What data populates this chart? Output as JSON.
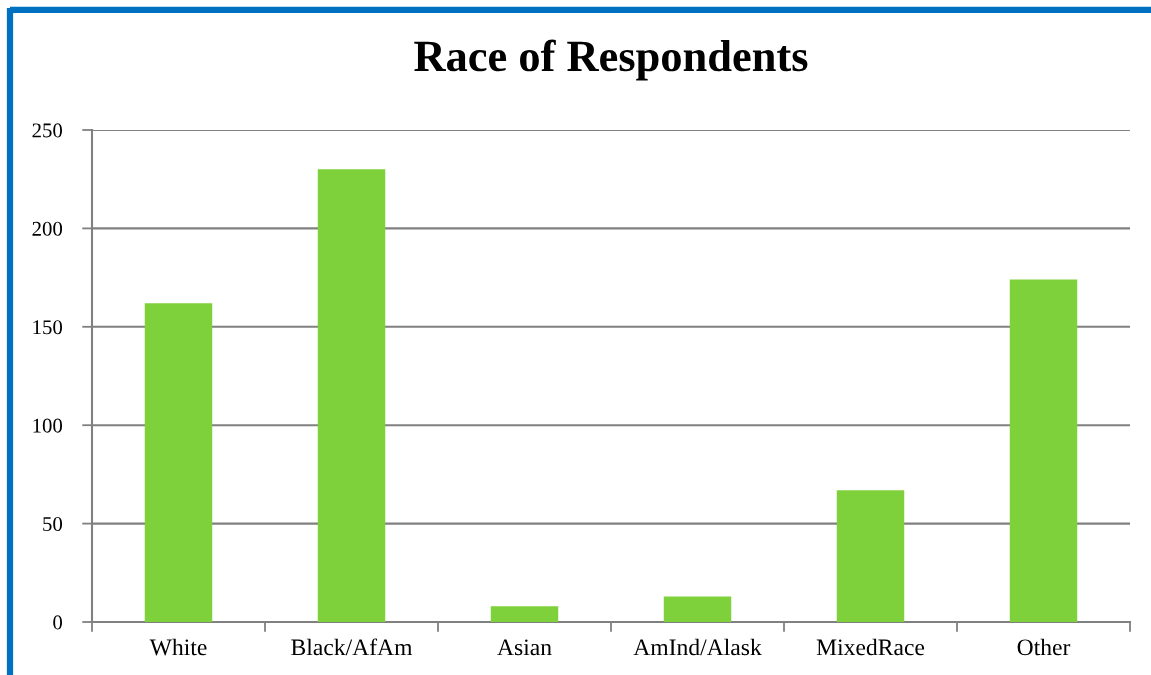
{
  "chart_data": {
    "type": "bar",
    "title": "Race of Respondents",
    "categories": [
      "White",
      "Black/AfAm",
      "Asian",
      "AmInd/Alask",
      "MixedRace",
      "Other"
    ],
    "values": [
      162,
      230,
      8,
      13,
      67,
      174
    ],
    "color": "#7fd13b",
    "ylim": [
      0,
      250
    ],
    "yticks": [
      0,
      50,
      100,
      150,
      200,
      250
    ],
    "grid": "y"
  }
}
